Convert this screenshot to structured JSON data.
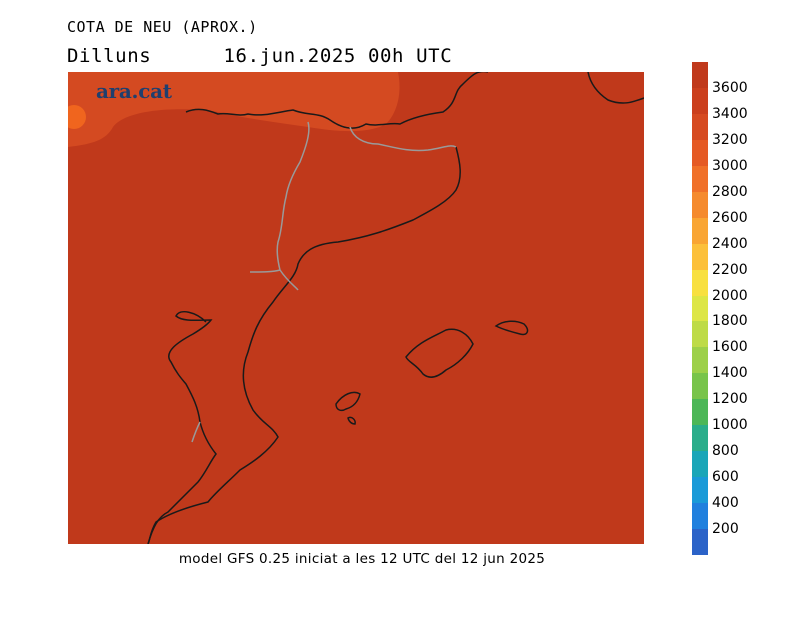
{
  "title": "COTA DE NEU (APROX.)",
  "day": "Dilluns",
  "datetime": "16.jun.2025 00h UTC",
  "logo_text": "ara.cat",
  "footer": "model GFS 0.25 iniciat a les 12 UTC del 12 jun 2025",
  "map": {
    "fill_color": "#c0391b",
    "upper_fill_color": "#d44a21",
    "peak_fill_color": "#f0651e",
    "coast_color": "#1a1a1a",
    "border_color": "#9a9a9a"
  },
  "legend": [
    {
      "label": "",
      "color": "#c0391b"
    },
    {
      "label": "3600",
      "color": "#cb3f1d"
    },
    {
      "label": "3400",
      "color": "#d64a21"
    },
    {
      "label": "3200",
      "color": "#e55a24"
    },
    {
      "label": "3000",
      "color": "#f07028"
    },
    {
      "label": "2800",
      "color": "#f58a2d"
    },
    {
      "label": "2600",
      "color": "#f9a533"
    },
    {
      "label": "2400",
      "color": "#fcc03a"
    },
    {
      "label": "2200",
      "color": "#f8e040"
    },
    {
      "label": "2000",
      "color": "#dde645"
    },
    {
      "label": "1800",
      "color": "#bedb46"
    },
    {
      "label": "1600",
      "color": "#9dd048"
    },
    {
      "label": "1400",
      "color": "#78c44a"
    },
    {
      "label": "1200",
      "color": "#4cb757"
    },
    {
      "label": "1000",
      "color": "#2aad8a"
    },
    {
      "label": "800",
      "color": "#1aa6b8"
    },
    {
      "label": "600",
      "color": "#1a9ad8"
    },
    {
      "label": "400",
      "color": "#2080de"
    },
    {
      "label": "200",
      "color": "#2b63c8"
    }
  ]
}
